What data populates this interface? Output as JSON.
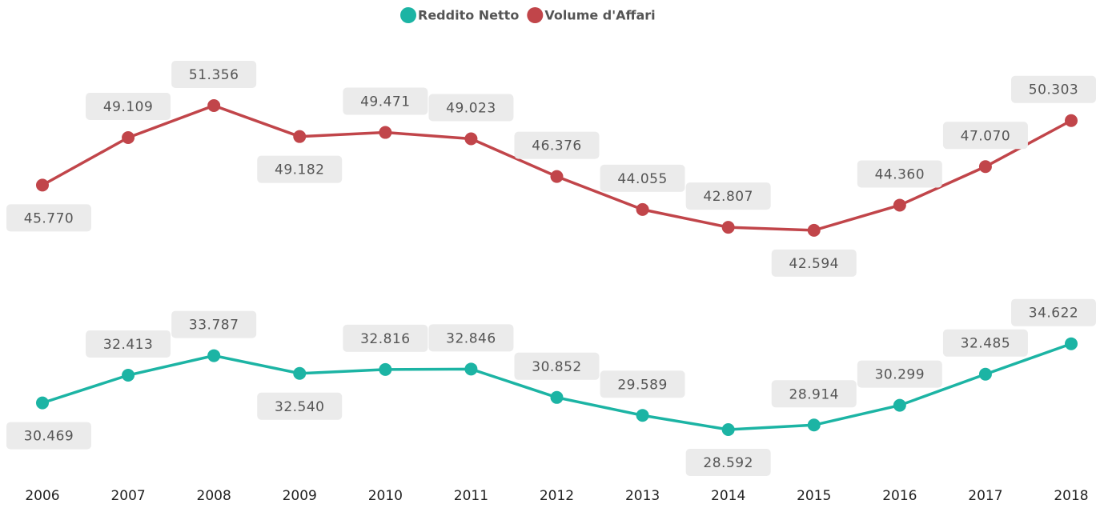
{
  "chart_data": {
    "type": "line",
    "categories": [
      "2006",
      "2007",
      "2008",
      "2009",
      "2010",
      "2011",
      "2012",
      "2013",
      "2014",
      "2015",
      "2016",
      "2017",
      "2018"
    ],
    "series": [
      {
        "name": "Reddito Netto",
        "color": "#1cb4a4",
        "values": [
          30469,
          32413,
          33787,
          32540,
          32816,
          32846,
          30852,
          29589,
          28592,
          28914,
          30299,
          32485,
          34622
        ],
        "value_labels": [
          "30.469",
          "32.413",
          "33.787",
          "32.540",
          "32.816",
          "32.846",
          "30.852",
          "29.589",
          "28.592",
          "28.914",
          "30.299",
          "32.485",
          "34.622"
        ]
      },
      {
        "name": "Volume d'Affari",
        "color": "#c1454a",
        "values": [
          45770,
          49109,
          51356,
          49182,
          49471,
          49023,
          46376,
          44055,
          42807,
          42594,
          44360,
          47070,
          50303
        ],
        "value_labels": [
          "45.770",
          "49.109",
          "51.356",
          "49.182",
          "49.471",
          "49.023",
          "46.376",
          "44.055",
          "42.807",
          "42.594",
          "44.360",
          "47.070",
          "50.303"
        ]
      }
    ],
    "legend": "top"
  }
}
